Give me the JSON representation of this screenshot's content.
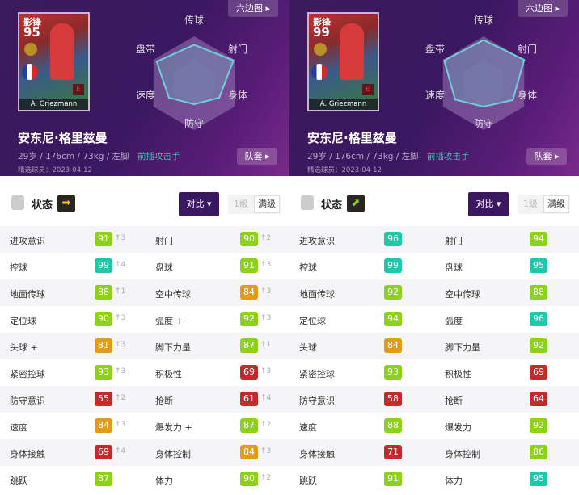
{
  "colors": {
    "teal": "#1fc8a8",
    "green": "#8cd219",
    "orange": "#e49b17",
    "red": "#c22a2c",
    "header_purple": "#3a1760"
  },
  "panels": [
    {
      "hexagon_button": "六边图",
      "card": {
        "position": "影锋",
        "rating": "95",
        "name": "A. Griezmann"
      },
      "radar_labels": [
        "传球",
        "射门",
        "身体",
        "防守",
        "速度",
        "盘带"
      ],
      "radar_fill": [
        0.82,
        0.97,
        0.62,
        0.45,
        0.62,
        0.92
      ],
      "player_name": "安东尼·格里兹曼",
      "info": "29岁 / 176cm / 73kg / 左脚",
      "role": "前插攻击手",
      "date": "精选球员：2023-04-12",
      "team_button": "队套",
      "status_label": "状态",
      "status_arrow": "arrow-right-icon",
      "compare": "对比",
      "level1": "1级",
      "level_max": "满级",
      "rows": [
        [
          [
            "进攻意识",
            "91",
            "↑3"
          ],
          [
            "射门",
            "90",
            "↑2"
          ]
        ],
        [
          [
            "控球",
            "99",
            "↑4"
          ],
          [
            "盘球",
            "91",
            "↑3"
          ]
        ],
        [
          [
            "地面传球",
            "88",
            "↑1"
          ],
          [
            "空中传球",
            "84",
            "↑3"
          ]
        ],
        [
          [
            "定位球",
            "90",
            "↑3"
          ],
          [
            "弧度 +",
            "92",
            "↑3"
          ]
        ],
        [
          [
            "头球 +",
            "81",
            "↑3"
          ],
          [
            "脚下力量",
            "87",
            "↑1"
          ]
        ],
        [
          [
            "紧密控球",
            "93",
            "↑3"
          ],
          [
            "积极性",
            "69",
            "↑3"
          ]
        ],
        [
          [
            "防守意识",
            "55",
            "↑2"
          ],
          [
            "抢断",
            "61",
            "↑4"
          ]
        ],
        [
          [
            "速度",
            "84",
            "↑3"
          ],
          [
            "爆发力 +",
            "87",
            "↑2"
          ]
        ],
        [
          [
            "身体接触",
            "69",
            "↑4"
          ],
          [
            "身体控制",
            "84",
            "↑3"
          ]
        ],
        [
          [
            "跳跃",
            "87",
            ""
          ],
          [
            "体力",
            "90",
            "↑2"
          ]
        ]
      ]
    },
    {
      "hexagon_button": "六边图",
      "card": {
        "position": "影锋",
        "rating": "99",
        "name": "A. Griezmann"
      },
      "radar_labels": [
        "传球",
        "射门",
        "身体",
        "防守",
        "速度",
        "盘带"
      ],
      "radar_fill": [
        0.92,
        1.0,
        0.72,
        0.5,
        0.7,
        0.97
      ],
      "player_name": "安东尼·格里兹曼",
      "info": "29岁 / 176cm / 73kg / 左脚",
      "role": "前插攻击手",
      "date": "精选球员：2023-04-12",
      "team_button": "队套",
      "status_label": "状态",
      "status_arrow": "arrow-up-right-icon",
      "compare": "对比",
      "level1": "1级",
      "level_max": "满级",
      "rows": [
        [
          [
            "进攻意识",
            "96",
            ""
          ],
          [
            "射门",
            "94",
            ""
          ]
        ],
        [
          [
            "控球",
            "99",
            ""
          ],
          [
            "盘球",
            "95",
            ""
          ]
        ],
        [
          [
            "地面传球",
            "92",
            ""
          ],
          [
            "空中传球",
            "88",
            ""
          ]
        ],
        [
          [
            "定位球",
            "94",
            ""
          ],
          [
            "弧度",
            "96",
            ""
          ]
        ],
        [
          [
            "头球",
            "84",
            ""
          ],
          [
            "脚下力量",
            "92",
            ""
          ]
        ],
        [
          [
            "紧密控球",
            "93",
            ""
          ],
          [
            "积极性",
            "69",
            ""
          ]
        ],
        [
          [
            "防守意识",
            "58",
            ""
          ],
          [
            "抢断",
            "64",
            ""
          ]
        ],
        [
          [
            "速度",
            "88",
            ""
          ],
          [
            "爆发力",
            "92",
            ""
          ]
        ],
        [
          [
            "身体接触",
            "71",
            ""
          ],
          [
            "身体控制",
            "86",
            ""
          ]
        ],
        [
          [
            "跳跃",
            "91",
            ""
          ],
          [
            "体力",
            "95",
            ""
          ]
        ]
      ]
    }
  ]
}
